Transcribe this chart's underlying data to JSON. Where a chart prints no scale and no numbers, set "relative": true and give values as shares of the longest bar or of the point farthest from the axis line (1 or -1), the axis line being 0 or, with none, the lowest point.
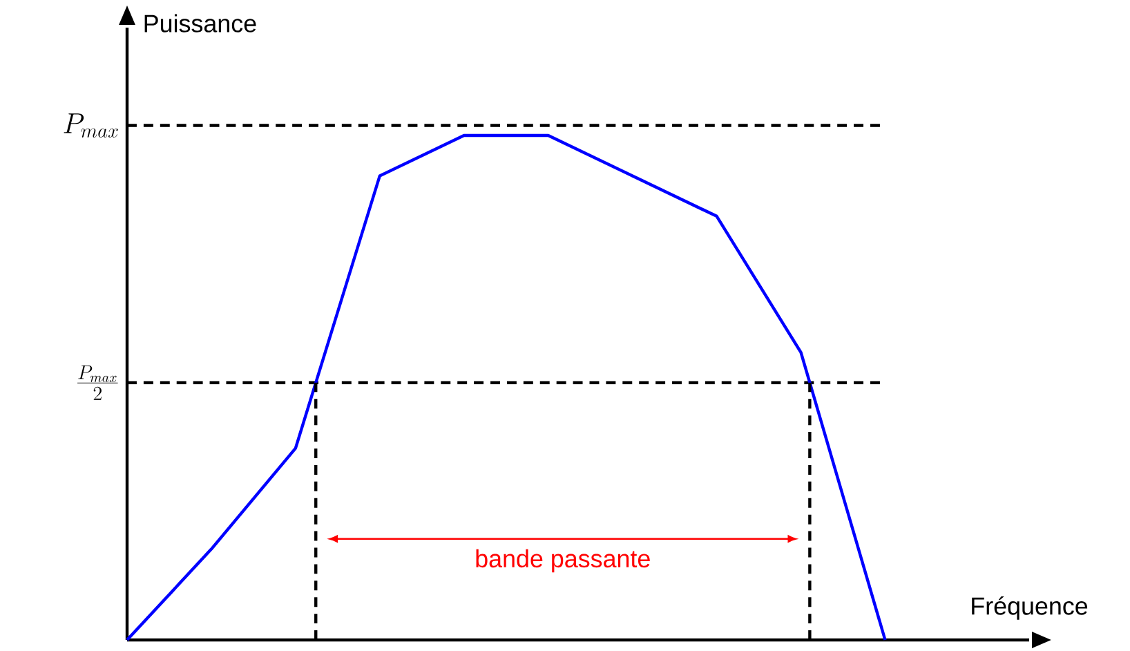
{
  "chart_data": {
    "type": "line",
    "xlabel": "Fréquence",
    "ylabel": "Puissance",
    "relative": true,
    "categories": [
      null,
      null,
      null,
      null,
      null,
      null,
      null,
      null,
      null,
      null
    ],
    "series": [
      {
        "color": "#0000ff",
        "values": [
          0,
          0.18,
          0.38,
          0.92,
          1,
          1,
          0.92,
          0.84,
          0.57,
          0
        ]
      }
    ],
    "ref_lines": [
      {
        "axis": "y",
        "value": 1.02,
        "label": "P_{max}",
        "color": "#000000",
        "line_style": "dashed"
      },
      {
        "axis": "y",
        "value": 0.51,
        "label": "\\frac{P_{max}}{2}",
        "color": "#000000",
        "line_style": "dashed"
      }
    ],
    "annotations": [
      "bande passante"
    ],
    "grid": false,
    "marker": "none",
    "line_style": "solid"
  }
}
